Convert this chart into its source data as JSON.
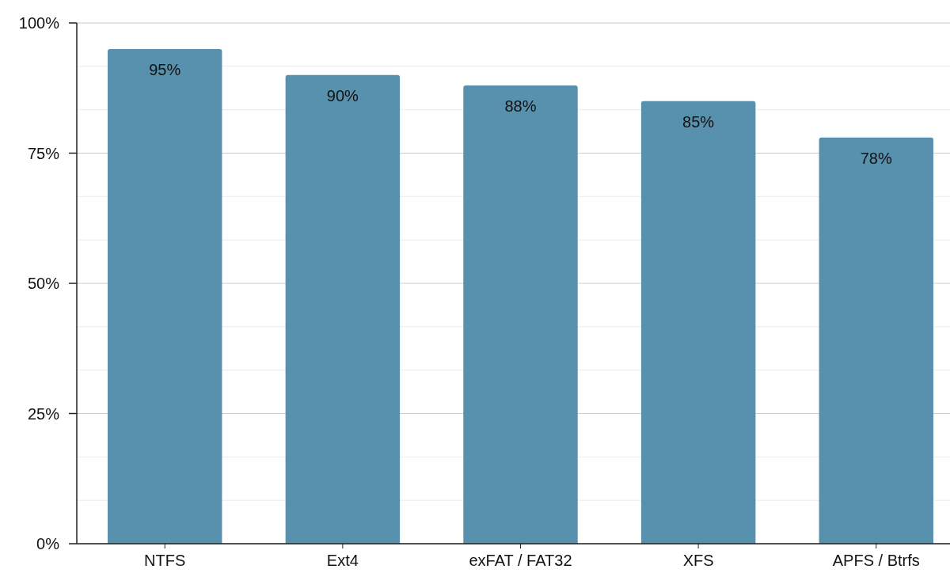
{
  "chart_data": {
    "type": "bar",
    "categories": [
      "NTFS",
      "Ext4",
      "exFAT / FAT32",
      "XFS",
      "APFS / Btrfs"
    ],
    "values": [
      95,
      90,
      88,
      85,
      78
    ],
    "color": "#5891ae",
    "value_labels": [
      "95%",
      "90%",
      "88%",
      "85%",
      "78%"
    ],
    "ylim": [
      0,
      100
    ],
    "yticks": [
      {
        "value": 0,
        "label": "0%"
      },
      {
        "value": 8.33,
        "label": null
      },
      {
        "value": 16.67,
        "label": null
      },
      {
        "value": 25,
        "label": "25%"
      },
      {
        "value": 33.33,
        "label": null
      },
      {
        "value": 41.67,
        "label": null
      },
      {
        "value": 50,
        "label": "50%"
      },
      {
        "value": 58.33,
        "label": null
      },
      {
        "value": 66.67,
        "label": null
      },
      {
        "value": 75,
        "label": "75%"
      },
      {
        "value": 83.33,
        "label": null
      },
      {
        "value": 91.67,
        "label": null
      },
      {
        "value": 100,
        "label": "100%"
      }
    ],
    "grid": "y"
  }
}
